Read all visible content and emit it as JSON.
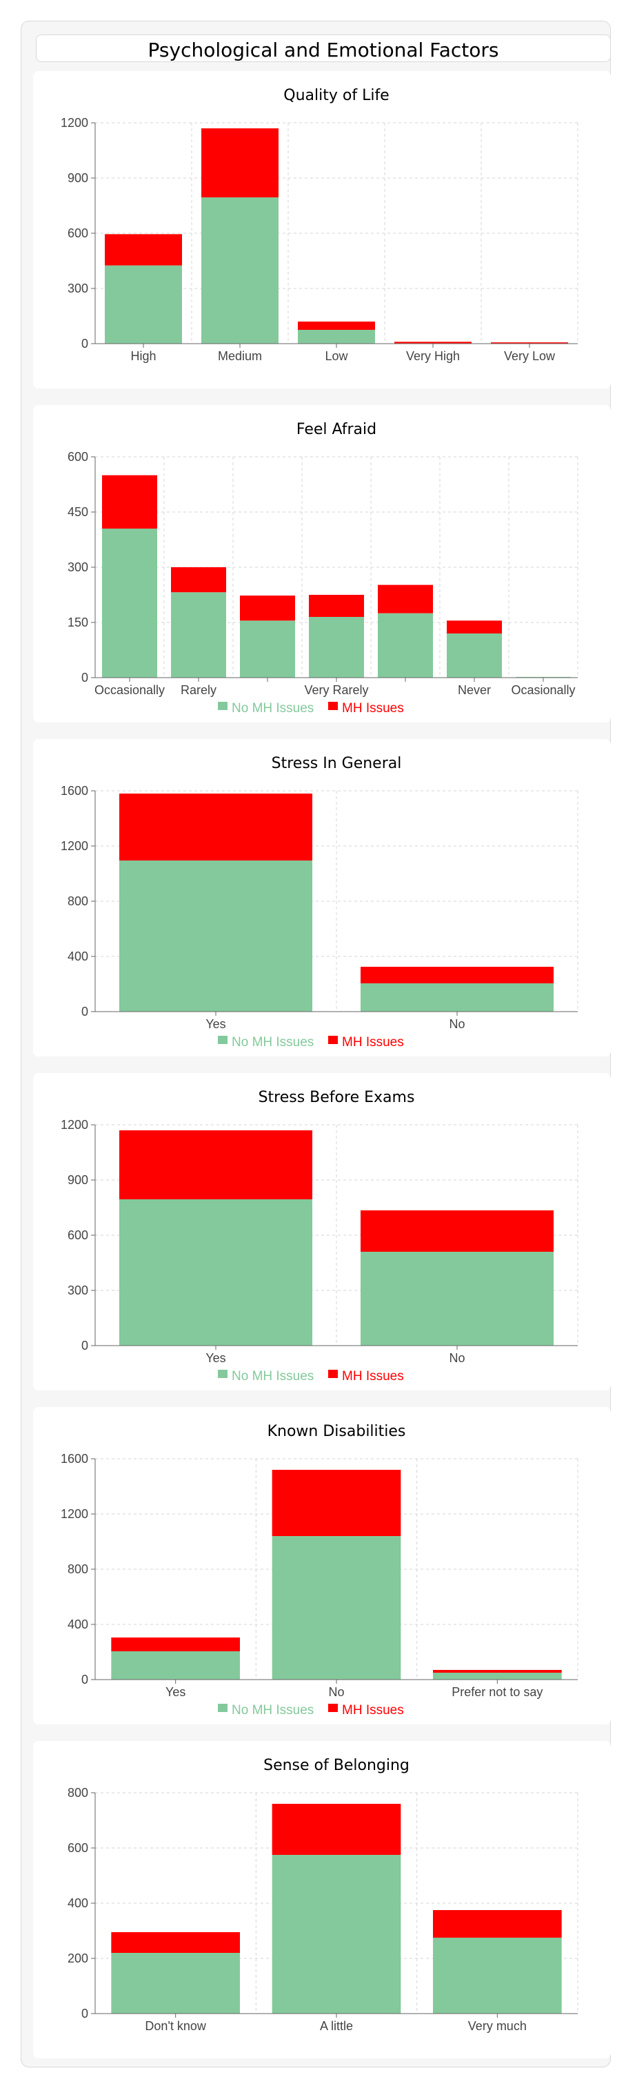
{
  "page_title": "Psychological and Emotional Factors",
  "colors": {
    "no_mh": "#84c99b",
    "mh": "#ff0000",
    "grid": "#d4d4d4",
    "axis": "#666666"
  },
  "legend_labels": [
    "No MH Issues",
    "MH Issues"
  ],
  "chart_data": [
    {
      "type": "bar",
      "title": "Quality of Life",
      "categories": [
        "High",
        "Medium",
        "Low",
        "Very High",
        "Very Low"
      ],
      "series": [
        {
          "name": "No MH Issues",
          "values": [
            425,
            795,
            75,
            2,
            2
          ]
        },
        {
          "name": "MH Issues",
          "values": [
            170,
            375,
            45,
            8,
            5
          ]
        }
      ],
      "yticks": [
        0,
        300,
        600,
        900,
        1200
      ],
      "ylim": [
        0,
        1200
      ],
      "stacked": true,
      "legend": false
    },
    {
      "type": "bar",
      "title": "Feel Afraid",
      "categories": [
        "Occasionally",
        "Rarely",
        "",
        "Very Rarely",
        "",
        "Never",
        "Ocasionally"
      ],
      "series": [
        {
          "name": "No MH Issues",
          "values": [
            405,
            232,
            155,
            165,
            175,
            120,
            2
          ]
        },
        {
          "name": "MH Issues",
          "values": [
            145,
            68,
            68,
            60,
            77,
            35,
            0
          ]
        }
      ],
      "yticks": [
        0,
        150,
        300,
        450,
        600
      ],
      "ylim": [
        0,
        600
      ],
      "stacked": true,
      "legend": true
    },
    {
      "type": "bar",
      "title": "Stress In General",
      "categories": [
        "Yes",
        "No"
      ],
      "series": [
        {
          "name": "No MH Issues",
          "values": [
            1095,
            205
          ]
        },
        {
          "name": "MH Issues",
          "values": [
            485,
            120
          ]
        }
      ],
      "yticks": [
        0,
        400,
        800,
        1200,
        1600
      ],
      "ylim": [
        0,
        1600
      ],
      "stacked": true,
      "legend": true
    },
    {
      "type": "bar",
      "title": "Stress Before Exams",
      "categories": [
        "Yes",
        "No"
      ],
      "series": [
        {
          "name": "No MH Issues",
          "values": [
            795,
            510
          ]
        },
        {
          "name": "MH Issues",
          "values": [
            375,
            225
          ]
        }
      ],
      "yticks": [
        0,
        300,
        600,
        900,
        1200
      ],
      "ylim": [
        0,
        1200
      ],
      "stacked": true,
      "legend": true
    },
    {
      "type": "bar",
      "title": "Known Disabilities",
      "categories": [
        "Yes",
        "No",
        "Prefer not to say"
      ],
      "series": [
        {
          "name": "No MH Issues",
          "values": [
            205,
            1040,
            50
          ]
        },
        {
          "name": "MH Issues",
          "values": [
            100,
            480,
            20
          ]
        }
      ],
      "yticks": [
        0,
        400,
        800,
        1200,
        1600
      ],
      "ylim": [
        0,
        1600
      ],
      "stacked": true,
      "legend": true
    },
    {
      "type": "bar",
      "title": "Sense of Belonging",
      "categories": [
        "Don't know",
        "A little",
        "Very much"
      ],
      "series": [
        {
          "name": "No MH Issues",
          "values": [
            220,
            575,
            275
          ]
        },
        {
          "name": "MH Issues",
          "values": [
            75,
            185,
            100
          ]
        }
      ],
      "yticks": [
        0,
        200,
        400,
        600,
        800
      ],
      "ylim": [
        0,
        800
      ],
      "stacked": true,
      "legend": false
    }
  ]
}
